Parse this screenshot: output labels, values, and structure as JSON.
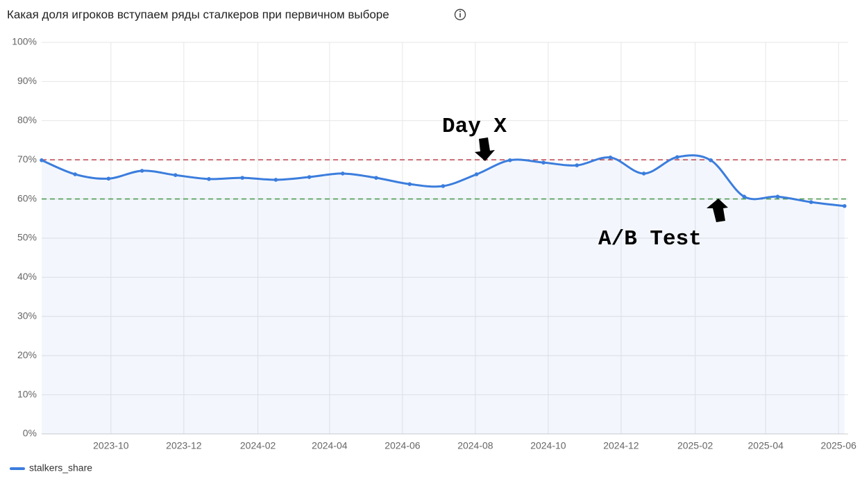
{
  "chart_data": {
    "type": "line",
    "title": "Какая доля игроков вступаем ряды сталкеров при первичном выборе",
    "x": [
      "2023-08-04",
      "2023-09-01",
      "2023-09-29",
      "2023-10-27",
      "2023-11-24",
      "2023-12-22",
      "2024-01-19",
      "2024-02-16",
      "2024-03-15",
      "2024-04-12",
      "2024-05-10",
      "2024-06-07",
      "2024-07-05",
      "2024-08-02",
      "2024-08-30",
      "2024-09-27",
      "2024-10-25",
      "2024-11-22",
      "2024-12-20",
      "2025-01-17",
      "2025-02-14",
      "2025-03-14",
      "2025-04-11",
      "2025-05-09",
      "2025-06-06"
    ],
    "series": [
      {
        "name": "stalkers_share",
        "color": "#3b7ddd",
        "values": [
          69.9,
          66.3,
          65.2,
          67.2,
          66.1,
          65.1,
          65.4,
          64.9,
          65.6,
          66.5,
          65.4,
          63.8,
          63.3,
          66.3,
          69.9,
          69.3,
          68.6,
          70.6,
          66.5,
          70.7,
          69.9,
          60.6,
          60.6,
          59.2,
          58.2
        ]
      }
    ],
    "xlim": [
      "2023-08-04",
      "2025-06-09"
    ],
    "xticks": [
      "2023-10",
      "2023-12",
      "2024-02",
      "2024-04",
      "2024-06",
      "2024-08",
      "2024-10",
      "2024-12",
      "2025-02",
      "2025-04",
      "2025-06"
    ],
    "ylim": [
      0,
      100
    ],
    "yticks": [
      {
        "value": 0,
        "label": "0%"
      },
      {
        "value": 10,
        "label": "10%"
      },
      {
        "value": 20,
        "label": "20%"
      },
      {
        "value": 30,
        "label": "30%"
      },
      {
        "value": 40,
        "label": "40%"
      },
      {
        "value": 50,
        "label": "50%"
      },
      {
        "value": 60,
        "label": "60%"
      },
      {
        "value": 70,
        "label": "70%"
      },
      {
        "value": 80,
        "label": "80%"
      },
      {
        "value": 90,
        "label": "90%"
      },
      {
        "value": 100,
        "label": "100%"
      }
    ],
    "grid": true,
    "reference_lines": [
      {
        "value": 70,
        "color": "#c0505a"
      },
      {
        "value": 60,
        "color": "#4f9a52"
      }
    ],
    "annotations": [
      "Day X",
      "A/B Test"
    ],
    "legend": "bottom-left"
  }
}
